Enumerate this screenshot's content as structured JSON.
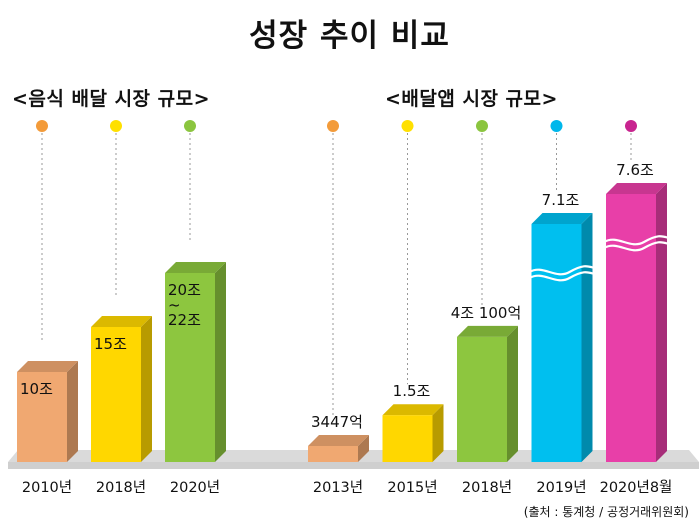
{
  "title": "성장 추이 비교",
  "source": "(출처 : 통계청 / 공정거래위원회)",
  "chart_data": [
    {
      "type": "bar",
      "title": "<음식 배달 시장 규모>",
      "unit": "조원",
      "categories": [
        "2010년",
        "2018년",
        "2020년"
      ],
      "values": [
        10,
        15,
        21
      ],
      "labels": [
        "10조",
        "15조",
        "20조\n~\n22조"
      ],
      "colors": [
        "#F0A871",
        "#FFD700",
        "#8DC63F"
      ],
      "marker_colors": [
        "#F39B3A",
        "#FFE000",
        "#8BC53F"
      ]
    },
    {
      "type": "bar",
      "title": "<배달앱 시장 규모>",
      "unit": "조원",
      "categories": [
        "2013년",
        "2015년",
        "2018년",
        "2019년",
        "2020년8월"
      ],
      "values": [
        0.3447,
        1.5,
        4.01,
        7.1,
        7.6
      ],
      "labels": [
        "3447억",
        "1.5조",
        "4조 100억",
        "7.1조",
        "7.6조"
      ],
      "broken_axis": [
        false,
        false,
        false,
        true,
        true
      ],
      "colors": [
        "#F0A871",
        "#FFD700",
        "#8DC63F",
        "#00BFEF",
        "#E83FA8"
      ],
      "marker_colors": [
        "#F39B3A",
        "#FFE000",
        "#8BC53F",
        "#00B7EB",
        "#C8248F"
      ]
    }
  ]
}
